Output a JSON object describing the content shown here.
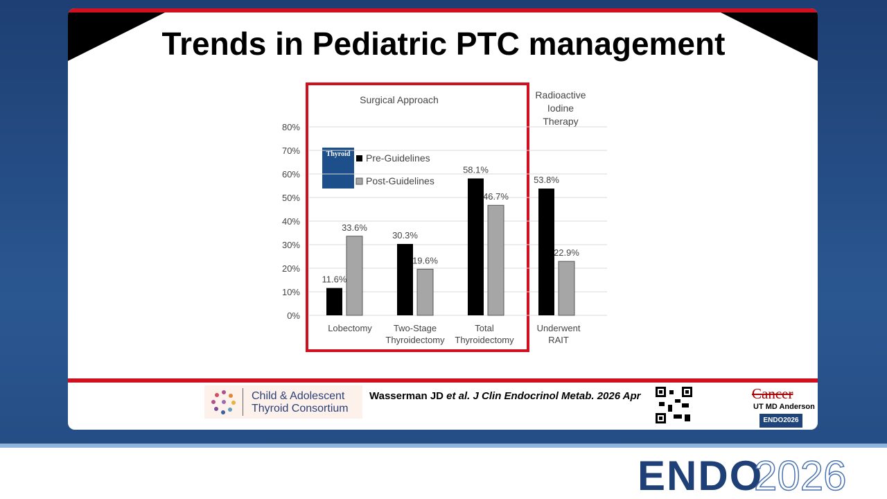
{
  "slide": {
    "title": "Trends in Pediatric PTC management",
    "journal_cover": "Thyroid",
    "logo_line1": "Child & Adolescent",
    "logo_line2": "Thyroid Consortium",
    "citation_author": "Wasserman JD",
    "citation_rest": "et al. J Clin Endocrinol Metab. 2026 Apr",
    "mda_cancer": "Cancer",
    "mda_name": "UT MD Anderson",
    "mda_badge": "ENDO2026",
    "brand_main": "ENDO",
    "brand_year": "2026"
  },
  "chart_data": {
    "type": "bar",
    "annotations": [
      "Surgical Approach",
      "Radioactive Iodine Therapy"
    ],
    "categories": [
      "Lobectomy",
      "Two-Stage Thyroidectomy",
      "Total Thyroidectomy",
      "Underwent RAIT"
    ],
    "series": [
      {
        "name": "Pre-Guidelines",
        "color": "#000000",
        "values": [
          11.6,
          30.3,
          58.1,
          53.8
        ],
        "value_labels": [
          "11.6%",
          "30.3%",
          "58.1%",
          "53.8%"
        ]
      },
      {
        "name": "Post-Guidelines",
        "color": "#a6a6a6",
        "values": [
          33.6,
          19.6,
          46.7,
          22.9
        ],
        "value_labels": [
          "33.6%",
          "19.6%",
          "46.7%",
          "22.9%"
        ]
      }
    ],
    "ylim": [
      0,
      80
    ],
    "yticks": [
      {
        "value": 0,
        "label": "0%"
      },
      {
        "value": 10,
        "label": "10%"
      },
      {
        "value": 20,
        "label": "20%"
      },
      {
        "value": 30,
        "label": "30%"
      },
      {
        "value": 40,
        "label": "40%"
      },
      {
        "value": 50,
        "label": "50%"
      },
      {
        "value": 60,
        "label": "60%"
      },
      {
        "value": 70,
        "label": "70%"
      },
      {
        "value": 80,
        "label": "80%"
      }
    ],
    "grid": true
  }
}
